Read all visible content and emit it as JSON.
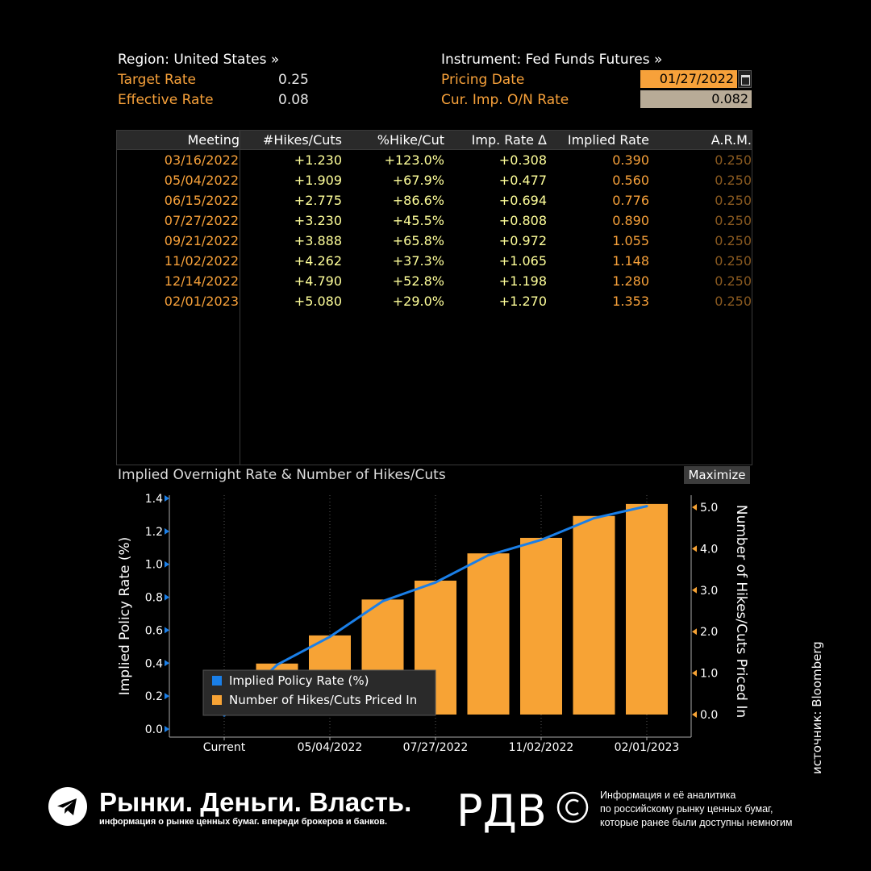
{
  "header": {
    "region_label": "Region: United States »",
    "instrument_label": "Instrument: Fed Funds Futures »",
    "target_rate_label": "Target Rate",
    "target_rate_value": "0.25",
    "effective_rate_label": "Effective Rate",
    "effective_rate_value": "0.08",
    "pricing_date_label": "Pricing Date",
    "pricing_date_value": "01/27/2022",
    "on_rate_label": "Cur. Imp. O/N Rate",
    "on_rate_value": "0.082"
  },
  "table": {
    "columns": [
      "Meeting",
      "#Hikes/Cuts",
      "%Hike/Cut",
      "Imp. Rate Δ",
      "Implied Rate",
      "A.R.M."
    ],
    "rows": [
      [
        "03/16/2022",
        "+1.230",
        "+123.0%",
        "+0.308",
        "0.390",
        "0.250"
      ],
      [
        "05/04/2022",
        "+1.909",
        "+67.9%",
        "+0.477",
        "0.560",
        "0.250"
      ],
      [
        "06/15/2022",
        "+2.775",
        "+86.6%",
        "+0.694",
        "0.776",
        "0.250"
      ],
      [
        "07/27/2022",
        "+3.230",
        "+45.5%",
        "+0.808",
        "0.890",
        "0.250"
      ],
      [
        "09/21/2022",
        "+3.888",
        "+65.8%",
        "+0.972",
        "1.055",
        "0.250"
      ],
      [
        "11/02/2022",
        "+4.262",
        "+37.3%",
        "+1.065",
        "1.148",
        "0.250"
      ],
      [
        "12/14/2022",
        "+4.790",
        "+52.8%",
        "+1.198",
        "1.280",
        "0.250"
      ],
      [
        "02/01/2023",
        "+5.080",
        "+29.0%",
        "+1.270",
        "1.353",
        "0.250"
      ]
    ]
  },
  "chart_panel": {
    "title": "Implied Overnight Rate & Number of Hikes/Cuts",
    "maximize_label": "Maximize"
  },
  "chart_data": {
    "type": "bar",
    "title": "Implied Overnight Rate & Number of Hikes/Cuts",
    "categories": [
      "Current",
      "03/16/2022",
      "05/04/2022",
      "06/15/2022",
      "07/27/2022",
      "09/21/2022",
      "11/02/2022",
      "12/14/2022",
      "02/01/2023"
    ],
    "x_tick_labels": [
      "Current",
      "05/04/2022",
      "07/27/2022",
      "11/02/2022",
      "02/01/2023"
    ],
    "ylabel": "Implied Policy Rate (%)",
    "ylabel_right": "Number of Hikes/Cuts Priced In",
    "ylim": [
      0,
      1.4
    ],
    "ylim_right": [
      0,
      5
    ],
    "y_ticks": [
      "0.0",
      "0.2",
      "0.4",
      "0.6",
      "0.8",
      "1.0",
      "1.2",
      "1.4"
    ],
    "y_ticks_right": [
      "0.0",
      "1.0",
      "2.0",
      "3.0",
      "4.0",
      "5.0"
    ],
    "series": [
      {
        "name": "Implied Policy Rate (%)",
        "type": "line",
        "axis": "left",
        "color": "#1a7fe8",
        "values": [
          0.082,
          0.39,
          0.56,
          0.776,
          0.89,
          1.055,
          1.148,
          1.28,
          1.353
        ]
      },
      {
        "name": "Number of Hikes/Cuts Priced In",
        "type": "bar",
        "axis": "right",
        "color": "#f7a335",
        "values": [
          null,
          1.23,
          1.909,
          2.775,
          3.23,
          3.888,
          4.262,
          4.79,
          5.08
        ]
      }
    ],
    "legend_position": "bottom-left",
    "grid": true
  },
  "credit": "источник: Bloomberg",
  "footer": {
    "brand_title": "Рынки. Деньги. Власть.",
    "brand_subtitle": "информация о рынке ценных бумаг. впереди брокеров и банков.",
    "logo_text": "РДВ",
    "note": "Информация и её аналитика\nпо российскому рынку ценных бумаг,\nкоторые ранее были доступны немногим"
  }
}
